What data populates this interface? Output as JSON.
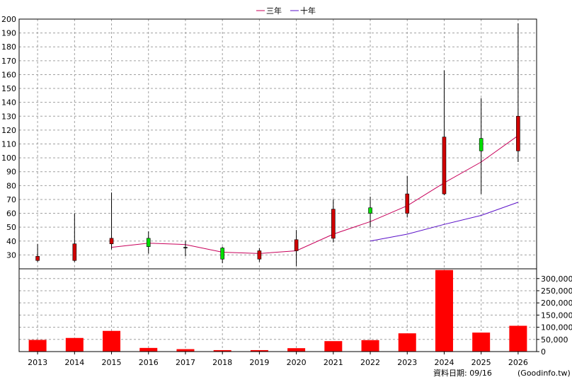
{
  "chart_data": [
    {
      "type": "candlestick",
      "legend_position": "top-center",
      "grid": true,
      "ylim": [
        20,
        200
      ],
      "y_ticks": [
        30,
        40,
        50,
        60,
        70,
        80,
        90,
        100,
        110,
        120,
        130,
        140,
        150,
        160,
        170,
        180,
        190,
        200
      ],
      "categories": [
        "2013",
        "2014",
        "2015",
        "2016",
        "2017",
        "2018",
        "2019",
        "2020",
        "2021",
        "2022",
        "2023",
        "2024",
        "2025",
        "2026"
      ],
      "ohlc": [
        {
          "open": 29,
          "high": 38,
          "low": 25,
          "close": 26
        },
        {
          "open": 38,
          "high": 60,
          "low": 25,
          "close": 26
        },
        {
          "open": 42,
          "high": 75,
          "low": 34,
          "close": 38
        },
        {
          "open": 36,
          "high": 47,
          "low": 31,
          "close": 42
        },
        {
          "open": 35.5,
          "high": 40,
          "low": 29,
          "close": 35.5
        },
        {
          "open": 27,
          "high": 36,
          "low": 24,
          "close": 35
        },
        {
          "open": 33,
          "high": 35,
          "low": 25,
          "close": 27
        },
        {
          "open": 41,
          "high": 48,
          "low": 22,
          "close": 33
        },
        {
          "open": 63,
          "high": 70,
          "low": 39,
          "close": 42
        },
        {
          "open": 60,
          "high": 72,
          "low": 50,
          "close": 64
        },
        {
          "open": 74,
          "high": 87,
          "low": 57,
          "close": 60
        },
        {
          "open": 115,
          "high": 163,
          "low": 73,
          "close": 74
        },
        {
          "open": 105,
          "high": 143,
          "low": 74,
          "close": 114
        },
        {
          "open": 130,
          "high": 197,
          "low": 97,
          "close": 105
        }
      ],
      "series": [
        {
          "name": "三年",
          "color": "#c8005a",
          "values": [
            null,
            null,
            35.5,
            38.5,
            37.5,
            32,
            31,
            33,
            45,
            54,
            65.5,
            82,
            97,
            116
          ]
        },
        {
          "name": "十年",
          "color": "#5a10c8",
          "values": [
            null,
            null,
            null,
            null,
            null,
            null,
            null,
            null,
            null,
            40,
            45,
            52,
            58.5,
            68
          ]
        }
      ],
      "up_color": "#00e000",
      "down_color": "#d00000"
    },
    {
      "type": "bar",
      "categories": [
        "2013",
        "2014",
        "2015",
        "2016",
        "2017",
        "2018",
        "2019",
        "2020",
        "2021",
        "2022",
        "2023",
        "2024",
        "2025",
        "2026"
      ],
      "values": [
        48000,
        56000,
        85000,
        15000,
        10000,
        6000,
        6000,
        14000,
        43000,
        47000,
        75000,
        335000,
        78000,
        106000
      ],
      "ylim": [
        0,
        340000
      ],
      "y_ticks": [
        0,
        50000,
        100000,
        150000,
        200000,
        250000,
        300000
      ],
      "y_tick_labels": [
        "0",
        "50,000",
        "100,000",
        "150,000",
        "200,000",
        "250,000",
        "300,000"
      ],
      "color": "#ff0000"
    }
  ],
  "footer": {
    "date_label": "資料日期: 09/16",
    "source": "(Goodinfo.tw)"
  }
}
